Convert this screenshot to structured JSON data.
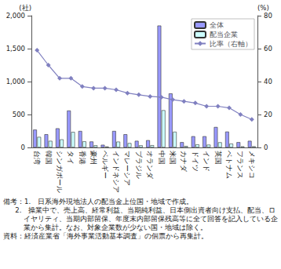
{
  "chart_data": {
    "type": "bar",
    "categories": [
      "台湾",
      "韓国",
      "シンガポール",
      "タイ",
      "香港",
      "豪州",
      "ベルギー",
      "インドネシア",
      "マレーシア",
      "ブラジル",
      "オランダ",
      "中国",
      "米国",
      "カナダ",
      "ドイツ",
      "インド",
      "英国",
      "ベトナム",
      "フランス",
      "メキシコ"
    ],
    "series": [
      {
        "name": "全体",
        "type": "bar",
        "color": "#9999ff",
        "values": [
          270,
          200,
          290,
          560,
          250,
          90,
          40,
          250,
          200,
          100,
          110,
          1850,
          820,
          80,
          170,
          170,
          310,
          240,
          80,
          100
        ]
      },
      {
        "name": "配当企業",
        "type": "bar",
        "color": "#ccffff",
        "values": [
          160,
          100,
          122,
          235,
          92,
          32,
          14,
          88,
          66,
          32,
          34,
          565,
          238,
          22,
          46,
          42,
          78,
          58,
          16,
          17
        ]
      },
      {
        "name": "比率（右軸）",
        "type": "line",
        "axis": "y2",
        "color": "#8080c0",
        "marker": "diamond",
        "values": [
          59,
          50,
          42,
          42,
          37,
          36,
          36,
          35,
          33,
          32,
          31,
          30.5,
          29,
          28,
          27,
          25,
          25,
          24,
          20,
          17
        ]
      }
    ],
    "y_label": "(社)",
    "y2_label": "(%)",
    "ylim": [
      0,
      2000
    ],
    "yticks": [
      0,
      500,
      {
        "value": 1000,
        "label": "1,000"
      },
      {
        "value": 1500,
        "label": "1,500"
      },
      {
        "value": 2000,
        "label": "2,000"
      }
    ],
    "y2lim": [
      0,
      80
    ],
    "y2ticks": [
      0,
      20,
      40,
      60,
      80
    ],
    "legend": "upper right",
    "grid": false,
    "notes": [
      "備考：1.　日系海外現地法人の配当金上位国・地域で作成。",
      "2.　操業中で、売上高、経常利益、当期純利益、日本側出資者向け支払、配当、ロイヤリティ、当期内部留保、年度末内部留保残高等に全て回答を記入している企業から集計。なお、対象企業数が少ない国・地域は除く。",
      "資料：経済産業省「海外事業活動基本調査」の個票から再集計。"
    ]
  }
}
